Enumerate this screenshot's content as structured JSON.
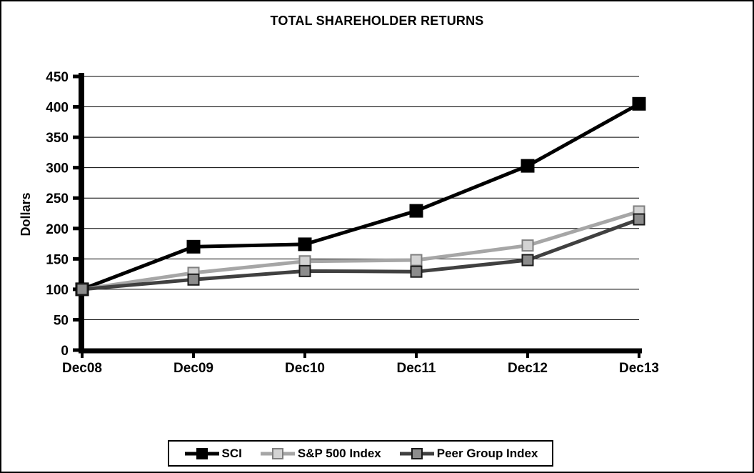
{
  "chart_data": {
    "type": "line",
    "title": "TOTAL SHAREHOLDER RETURNS",
    "xlabel": "",
    "ylabel": "Dollars",
    "categories": [
      "Dec08",
      "Dec09",
      "Dec10",
      "Dec11",
      "Dec12",
      "Dec13"
    ],
    "series": [
      {
        "name": "SCI",
        "values": [
          100,
          170,
          174,
          229,
          303,
          405
        ],
        "line_color": "#000000",
        "marker_fill": "#000000",
        "marker_edge": "#000000"
      },
      {
        "name": "S&P 500 Index",
        "values": [
          100,
          127,
          146,
          148,
          172,
          228
        ],
        "line_color": "#a6a6a6",
        "marker_fill": "#d3d3d3",
        "marker_edge": "#7f7f7f"
      },
      {
        "name": "Peer Group Index",
        "values": [
          100,
          116,
          130,
          129,
          148,
          215
        ],
        "line_color": "#404040",
        "marker_fill": "#8c8c8c",
        "marker_edge": "#1a1a1a"
      }
    ],
    "ylim": [
      0,
      450
    ],
    "yticks": [
      0,
      50,
      100,
      150,
      200,
      250,
      300,
      350,
      400,
      450
    ],
    "grid": "horizontal",
    "legend_position": "bottom",
    "axis_color": "#000000",
    "background": "#ffffff"
  }
}
